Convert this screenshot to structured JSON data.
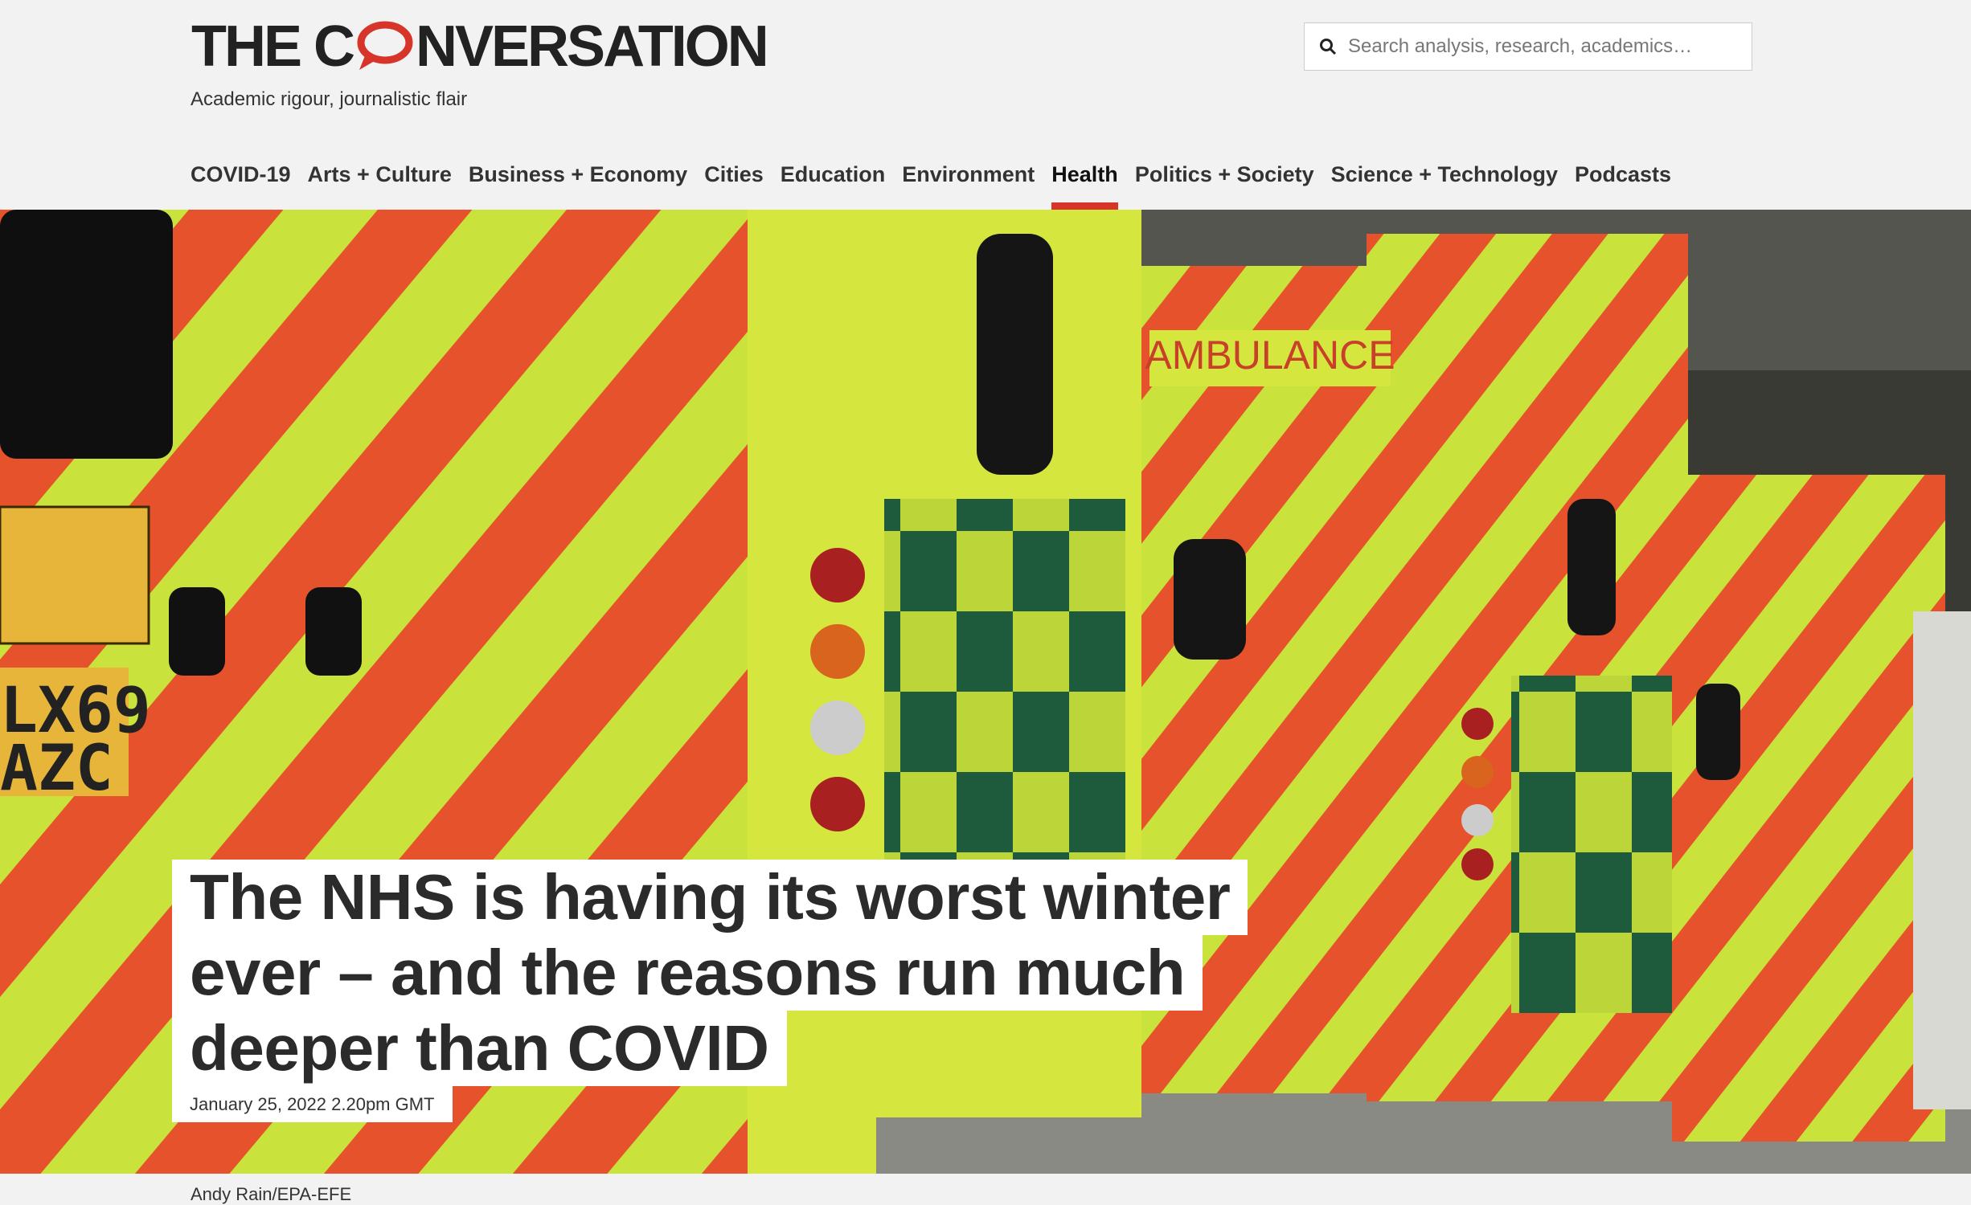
{
  "header": {
    "logo_prefix": "THE C",
    "logo_suffix": "NVERSATION",
    "tagline": "Academic rigour, journalistic flair",
    "search_placeholder": "Search analysis, research, academics…"
  },
  "nav": {
    "items": [
      "COVID-19",
      "Arts + Culture",
      "Business + Economy",
      "Cities",
      "Education",
      "Environment",
      "Health",
      "Politics + Society",
      "Science + Technology",
      "Podcasts"
    ],
    "active": "Health"
  },
  "image_text": {
    "ambulance_sign": "AMBULANCE",
    "plate_line1": "LX69",
    "plate_line2": "AZC"
  },
  "article": {
    "headline_lines": [
      "The NHS is having its worst winter",
      "ever – and the reasons run much",
      "deeper than COVID"
    ],
    "date": "January 25, 2022 2.20pm GMT",
    "image_credit": "Andy Rain/EPA-EFE"
  }
}
